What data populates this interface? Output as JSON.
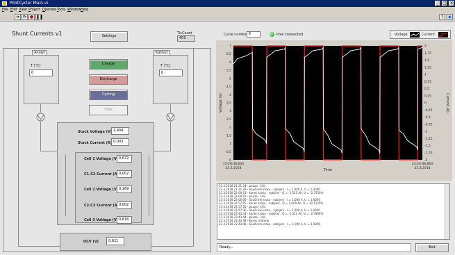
{
  "window": {
    "title": "PilotCycler Main.vi"
  },
  "menu": [
    "File",
    "Edit",
    "View",
    "Project",
    "Operate",
    "Tools",
    "Window",
    "Help"
  ],
  "panel": {
    "title": "Shunt Currents v1",
    "settings_label": "Settings",
    "tick_label": "TicCount",
    "tick_value": "403",
    "cycle_label": "Cycle number",
    "cycle_value": "6",
    "connected_label": "Pole connected",
    "legend_voltage": "Voltage",
    "legend_current": "Current"
  },
  "left": {
    "anolyt_label": "Anolyt",
    "katolyt_label": "Katolyt",
    "temp_left_label": "T (°C)",
    "temp_left_value": "0",
    "temp_right_label": "T (°C)",
    "temp_right_value": "0"
  },
  "buttons": {
    "charge": "Charge",
    "discharge": "Discharge",
    "cycling": "Cycling",
    "stop": "Stop"
  },
  "measurements": {
    "stack_voltage_label": "Stack Voltage (V)",
    "stack_voltage_value": "1,904",
    "stack_current_label": "Stack Current (A)",
    "stack_current_value": "0,003",
    "cell1_label": "Cell 1 Voltage (V)",
    "cell1_value": "0,672",
    "c1c2_label": "C1-C2 Current (A)",
    "c1c2_value": "0,002",
    "cell2_label": "Cell 2 Voltage (V)",
    "cell2_value": "0,169",
    "c2c3_label": "C2-C3 Current (A)",
    "c2c3_value": "0,002",
    "cell3_label": "Cell 3 Voltage (V)",
    "cell3_value": "0,618",
    "ocv_label": "OCV (V)",
    "ocv_value": "0,621"
  },
  "chart_data": {
    "type": "line",
    "xlabel": "Time",
    "ylabel": "Voltage (V)",
    "y2label": "Current (A)",
    "x_start": "15:28:38,635",
    "x_start_date": "23.3.2018",
    "x_end": "23:43:48,864",
    "x_end_date": "23.3.2018",
    "ylim": [
      0,
      7
    ],
    "y2lim": [
      -2,
      2
    ],
    "yticks": [
      "7",
      "6,5",
      "6",
      "5,5",
      "5",
      "4,5",
      "4",
      "3,5",
      "3",
      "2,5",
      "2",
      "1,5",
      "1",
      "0,5",
      "0"
    ],
    "y2ticks": [
      "2",
      "1,75",
      "1,5",
      "1,25",
      "1",
      "0,75",
      "0,5",
      "0,25",
      "0",
      "-0,25",
      "-0,5",
      "-0,75",
      "-1",
      "-1,25",
      "-1,5",
      "-1,75",
      "-2"
    ],
    "series": [
      {
        "name": "Voltage",
        "color": "#ffffff",
        "x": [
          0.0,
          0.02,
          0.07,
          0.1,
          0.101,
          0.12,
          0.17,
          0.175,
          0.176,
          0.2,
          0.22,
          0.27,
          0.275,
          0.276,
          0.3,
          0.32,
          0.37,
          0.375,
          0.376,
          0.4,
          0.42,
          0.47,
          0.475,
          0.476,
          0.5,
          0.52,
          0.57,
          0.575,
          0.576,
          0.6,
          0.62,
          0.67,
          0.675,
          0.676,
          0.7,
          0.72,
          0.77,
          0.775,
          0.776,
          0.8,
          0.82,
          0.87,
          0.875,
          0.876,
          0.9,
          0.92,
          0.97,
          0.975,
          0.976,
          1.0
        ],
        "values": [
          5.9,
          6.2,
          6.4,
          6.6,
          1.9,
          1.6,
          1.2,
          1.0,
          6.3,
          6.5,
          6.7,
          6.8,
          6.9,
          1.9,
          1.6,
          1.1,
          0.7,
          0.5,
          6.3,
          6.5,
          6.7,
          6.8,
          6.9,
          1.9,
          1.5,
          1.0,
          0.6,
          0.4,
          6.3,
          6.5,
          6.7,
          6.8,
          6.9,
          1.9,
          1.5,
          1.0,
          0.6,
          0.4,
          6.3,
          6.5,
          6.7,
          6.8,
          6.9,
          1.8,
          1.6,
          1.2,
          0.8,
          0.6,
          6.8,
          6.9
        ]
      },
      {
        "name": "Current",
        "color": "#ff2020",
        "x": [
          0.0,
          0.1,
          0.101,
          0.176,
          0.177,
          0.275,
          0.276,
          0.375,
          0.376,
          0.475,
          0.476,
          0.575,
          0.576,
          0.675,
          0.676,
          0.775,
          0.776,
          0.875,
          0.876,
          0.975,
          0.976,
          1.0
        ],
        "values": [
          2.0,
          2.0,
          -2.0,
          -2.0,
          2.0,
          2.0,
          -2.0,
          -2.0,
          2.0,
          2.0,
          -2.0,
          -2.0,
          2.0,
          2.0,
          -2.0,
          -2.0,
          2.0,
          2.0,
          -2.0,
          -2.0,
          2.0,
          2.0
        ]
      }
    ]
  },
  "log": [
    "23.3.2018 21:21:34 - pauza - 10s",
    "23.3.2018 21:21:39 - Součinné kroku - vybíjení -   I = 1,000 A, U = 1,0000",
    "23.3.2018 22:00:01 - konec kroku - vybíjení -   Q = -1,525 Ah, U = -2,7550%",
    "23.3.2018 22:00:01 - pauza - 10s",
    "23.3.2018 22:00:06 - Součinné kroku - nabíjení -   I = 1,000 A, U = 1,0000",
    "23.3.2018 22:57:25 - konec kroku - nabíjení -   Q = 1,609 Ah, U = 30,1535%",
    "23.3.2018 22:57:25 - pauza - 10s",
    "23.3.2018 22:57:30 - Součinné kroku - vybíjení -   I = 1,000 A, U = 1,0000",
    "23.3.2018 23:43:44 - konec kroku - vybíjení -   Q = -1,521 Ah, U = -2,7890%",
    "23.3.2018 23:43:44 - pauza - 10s",
    "23.3.2018 23:43:48 - Konec metody",
    "23.3.2018 23:43:48 - Součinné kroku - nabíjení -   I = 1,000 A, U = 1,0000"
  ],
  "status": {
    "text": "Ready...",
    "exit_label": "Exit"
  },
  "colors": {
    "charge": "#5fa86a",
    "discharge": "#d39a9a",
    "cycling": "#6a6e9a",
    "stop": "#eeeeee",
    "voltage": "#ffffff",
    "current": "#ff2020"
  }
}
